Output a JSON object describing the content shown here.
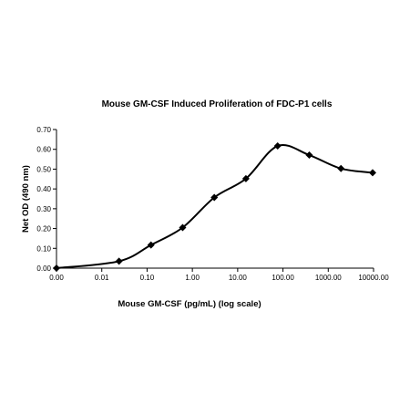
{
  "chart_data": {
    "type": "line",
    "title": "Mouse GM-CSF Induced Proliferation of FDC-P1 cells",
    "xlabel": "Mouse GM-CSF  (pg/mL) (log scale)",
    "ylabel": "Net OD (490 nm)",
    "x_scale": "log",
    "x_tick_labels": [
      "0.00",
      "0.01",
      "0.10",
      "1.00",
      "10.00",
      "100.00",
      "1000.00",
      "10000.00"
    ],
    "y_tick_labels": [
      "0.00",
      "0.10",
      "0.20",
      "0.30",
      "0.40",
      "0.50",
      "0.60",
      "0.70"
    ],
    "ylim": [
      0,
      0.7
    ],
    "grid": false,
    "legend": "none",
    "line_color": "#000000",
    "marker": "diamond",
    "series": [
      {
        "x": [
          0.001,
          0.024,
          0.122,
          0.61,
          3.05,
          15.2,
          76.3,
          381,
          1907,
          9537
        ],
        "values": [
          0.0,
          0.035,
          0.117,
          0.205,
          0.357,
          0.452,
          0.617,
          0.571,
          0.503,
          0.482
        ]
      }
    ]
  }
}
